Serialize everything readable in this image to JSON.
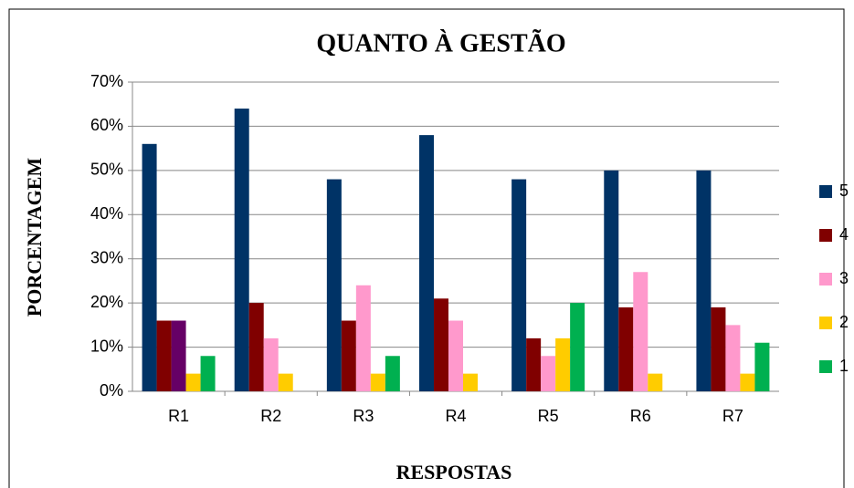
{
  "chart_data": {
    "type": "bar",
    "title": "QUANTO À GESTÃO",
    "x_label": "RESPOSTAS",
    "y_label": "PORCENTAGEM",
    "categories": [
      "R1",
      "R2",
      "R3",
      "R4",
      "R5",
      "R6",
      "R7"
    ],
    "series": [
      {
        "name": "5",
        "color": "#003366",
        "values": [
          56,
          64,
          48,
          58,
          48,
          50,
          50
        ]
      },
      {
        "name": "4",
        "color": "#800000",
        "values": [
          16,
          20,
          16,
          21,
          12,
          19,
          19
        ]
      },
      {
        "name": "3",
        "color": "#ff99cc",
        "colors": [
          "#660066",
          "#ff99cc",
          "#ff99cc",
          "#ff99cc",
          "#ff99cc",
          "#ff99cc",
          "#ff99cc"
        ],
        "values": [
          16,
          12,
          24,
          16,
          8,
          27,
          15
        ]
      },
      {
        "name": "2",
        "color": "#ffcc00",
        "values": [
          4,
          4,
          4,
          4,
          12,
          4,
          4
        ]
      },
      {
        "name": "1",
        "color": "#00b050",
        "values": [
          8,
          0,
          8,
          0,
          20,
          0,
          11
        ]
      }
    ],
    "ylim": [
      0,
      70
    ],
    "yticks": [
      {
        "value": 0,
        "label": "0%"
      },
      {
        "value": 10,
        "label": "10%"
      },
      {
        "value": 20,
        "label": "20%"
      },
      {
        "value": 30,
        "label": "30%"
      },
      {
        "value": 40,
        "label": "40%"
      },
      {
        "value": 50,
        "label": "50%"
      },
      {
        "value": 60,
        "label": "60%"
      },
      {
        "value": 70,
        "label": "70%"
      }
    ],
    "grid": true,
    "legend": "right"
  }
}
